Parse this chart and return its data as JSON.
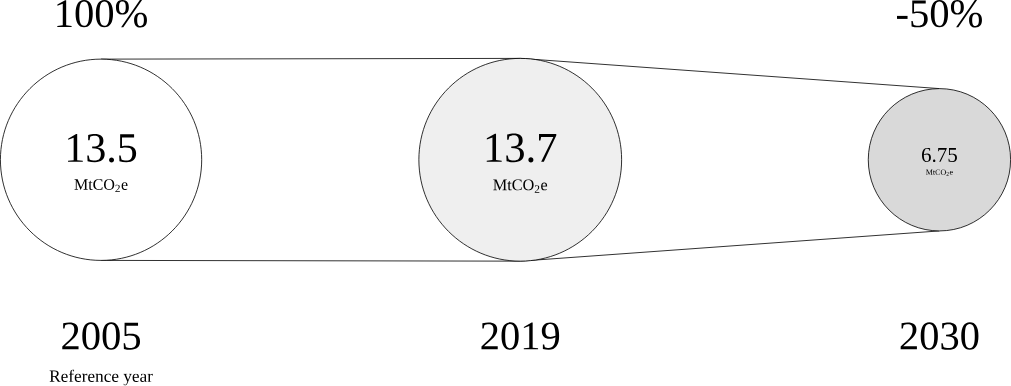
{
  "chart_data": {
    "type": "other",
    "categories": [
      "2005",
      "2019",
      "2030"
    ],
    "values": [
      13.5,
      13.7,
      6.75
    ],
    "colors": [
      "#ffffff",
      "#efefef",
      "#d9d9d9"
    ],
    "data_labels": true,
    "ylabel": "MtCO$_{2}$e",
    "annotations": [
      "100%",
      "-50%",
      "Reference year"
    ]
  }
}
